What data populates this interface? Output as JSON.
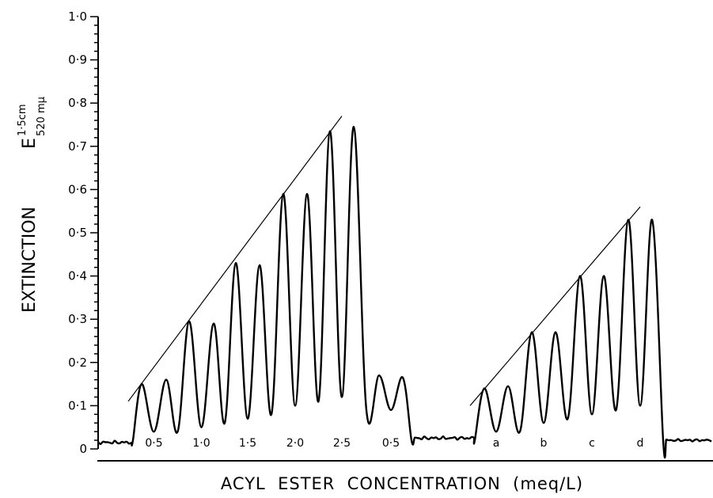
{
  "chart_data": {
    "type": "line",
    "ylabel": {
      "word": "EXTINCTION",
      "symbol": "E",
      "superscript": "1·5cm",
      "subscript": "520 mμ"
    },
    "xlabel": "ACYL  ESTER  CONCENTRATION  (meq/L)",
    "ylim": [
      0,
      1.0
    ],
    "y_ticks": [
      "0",
      "0·1",
      "0·2",
      "0·3",
      "0·4",
      "0·5",
      "0·6",
      "0·7",
      "0·8",
      "0·9",
      "1·0"
    ],
    "grid": false,
    "series": [
      {
        "group": 1,
        "peak_heights": [
          0.15,
          0.16,
          0.295,
          0.29,
          0.43,
          0.425,
          0.59,
          0.59,
          0.735,
          0.745,
          0.17,
          0.165
        ],
        "peak_labels": [
          "0·5",
          "1·0",
          "1·5",
          "2·0",
          "2·5",
          "0·5"
        ],
        "trend_line": {
          "from": 0.11,
          "to": 0.77
        }
      },
      {
        "group": 2,
        "peak_heights": [
          0.14,
          0.145,
          0.27,
          0.27,
          0.4,
          0.4,
          0.53,
          0.53
        ],
        "peak_labels": [
          "a",
          "b",
          "c",
          "d"
        ],
        "trend_line": {
          "from": 0.1,
          "to": 0.56
        }
      }
    ],
    "baseline": 0.02
  }
}
